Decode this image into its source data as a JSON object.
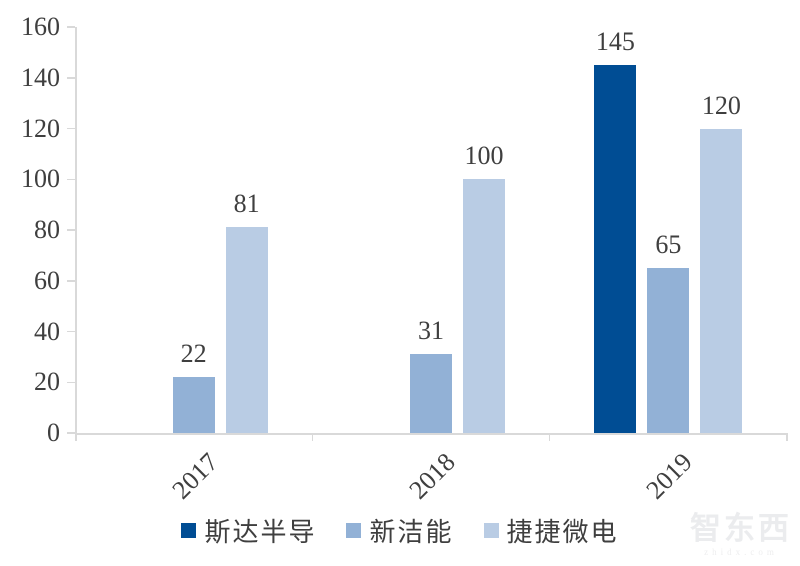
{
  "chart_data": {
    "type": "bar",
    "title": "",
    "xlabel": "",
    "ylabel": "",
    "categories": [
      "2017",
      "2018",
      "2019"
    ],
    "series": [
      {
        "name": "斯达半导",
        "color": "#004D94",
        "values": [
          null,
          null,
          145
        ]
      },
      {
        "name": "新洁能",
        "color": "#92B1D6",
        "values": [
          22,
          31,
          65
        ]
      },
      {
        "name": "捷捷微电",
        "color": "#B9CCE4",
        "values": [
          81,
          100,
          120
        ]
      }
    ],
    "ylim": [
      0,
      160
    ],
    "yticks": [
      0,
      20,
      40,
      60,
      80,
      100,
      120,
      140,
      160
    ],
    "grid": false,
    "legend_position": "bottom",
    "data_labels_shown": true
  },
  "colors": {
    "axis_line": "#d9d9d9",
    "label_text": "#3f3f3f",
    "background": "#ffffff"
  },
  "watermark": {
    "logo_text": "智东西",
    "domain_text": "zhidx.com"
  }
}
